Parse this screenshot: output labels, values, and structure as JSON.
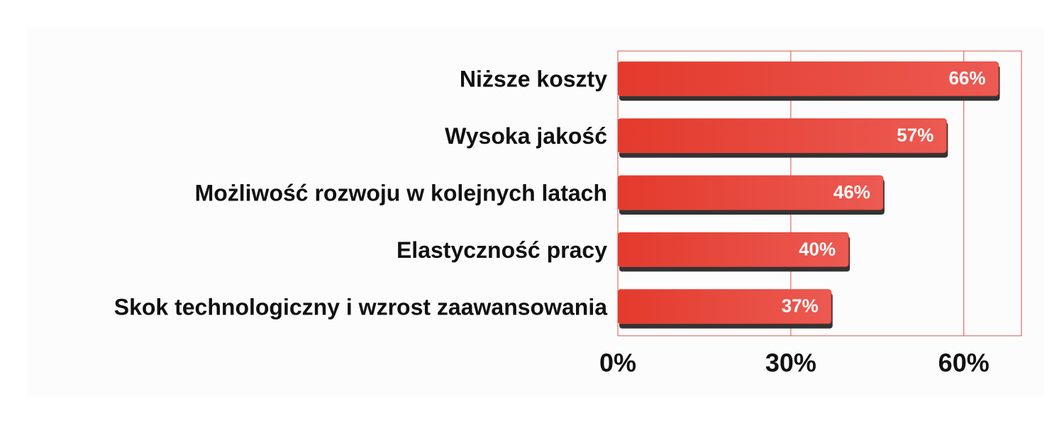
{
  "chart_data": {
    "type": "bar",
    "orientation": "horizontal",
    "categories": [
      "Niższe koszty",
      "Wysoka jakość",
      "Możliwość rozwoju w kolejnych latach",
      "Elastyczność pracy",
      "Skok technologiczny i wzrost zaawansowania"
    ],
    "values": [
      66,
      57,
      46,
      40,
      37
    ],
    "value_labels": [
      "66%",
      "57%",
      "46%",
      "40%",
      "37%"
    ],
    "color": "#e8433a",
    "xlim": [
      0,
      70
    ],
    "xticks": [
      {
        "value": 0,
        "label": "0%"
      },
      {
        "value": 30,
        "label": "30%"
      },
      {
        "value": 60,
        "label": "60%"
      }
    ],
    "grid": true
  }
}
